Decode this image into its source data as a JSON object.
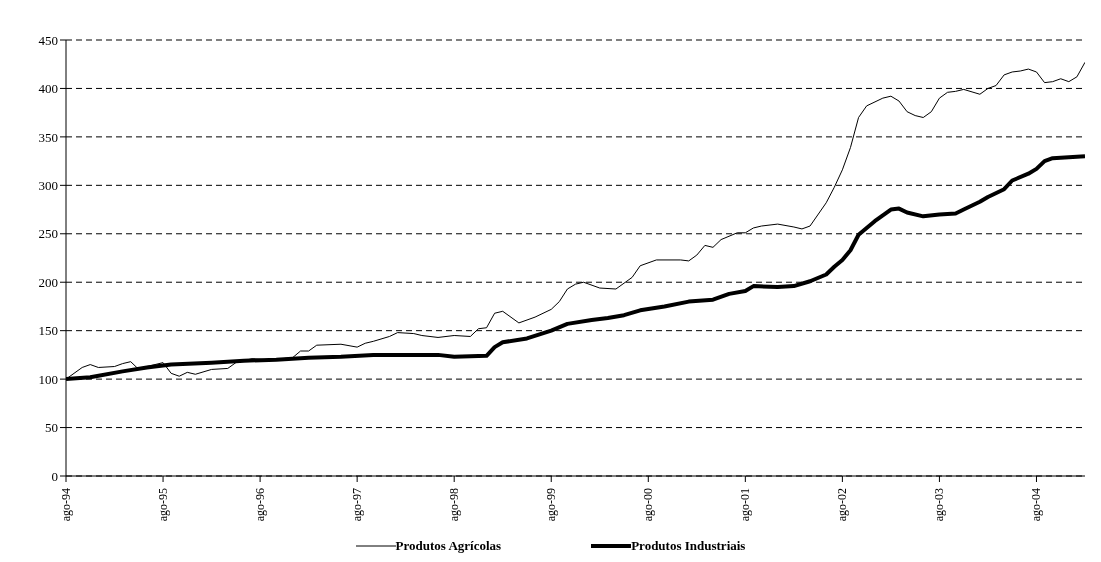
{
  "chart_data": {
    "type": "line",
    "xlim": [
      "1994-08",
      "2005-02"
    ],
    "xticks": [
      {
        "value": "1994-08",
        "label": "ago-94"
      },
      {
        "value": "1995-08",
        "label": "ago-95"
      },
      {
        "value": "1996-08",
        "label": "ago-96"
      },
      {
        "value": "1997-08",
        "label": "ago-97"
      },
      {
        "value": "1998-08",
        "label": "ago-98"
      },
      {
        "value": "1999-08",
        "label": "ago-99"
      },
      {
        "value": "2000-08",
        "label": "ago-00"
      },
      {
        "value": "2001-08",
        "label": "ago-01"
      },
      {
        "value": "2002-08",
        "label": "ago-02"
      },
      {
        "value": "2003-08",
        "label": "ago-03"
      },
      {
        "value": "2004-08",
        "label": "ago-04"
      }
    ],
    "ylim": [
      0,
      450
    ],
    "yticks": [
      0,
      50,
      100,
      150,
      200,
      250,
      300,
      350,
      400,
      450
    ],
    "grid": "y",
    "legend": "bottom",
    "marker": "none",
    "line_style": "solid",
    "series": [
      {
        "name": "Produtos Agrícolas",
        "color": "#000000",
        "x": [
          "1994-08",
          "1994-10",
          "1994-11",
          "1994-12",
          "1995-02",
          "1995-03",
          "1995-04",
          "1995-05",
          "1995-06",
          "1995-08",
          "1995-09",
          "1995-10",
          "1995-11",
          "1995-12",
          "1996-02",
          "1996-04",
          "1996-05",
          "1996-07",
          "1996-09",
          "1996-12",
          "1997-01",
          "1997-02",
          "1997-03",
          "1997-06",
          "1997-08",
          "1997-09",
          "1997-10",
          "1997-12",
          "1998-01",
          "1998-03",
          "1998-04",
          "1998-06",
          "1998-08",
          "1998-10",
          "1998-11",
          "1998-12",
          "1999-01",
          "1999-02",
          "1999-04",
          "1999-06",
          "1999-08",
          "1999-09",
          "1999-10",
          "1999-11",
          "1999-12",
          "2000-02",
          "2000-04",
          "2000-06",
          "2000-07",
          "2000-09",
          "2000-12",
          "2001-01",
          "2001-02",
          "2001-03",
          "2001-04",
          "2001-05",
          "2001-07",
          "2001-08",
          "2001-09",
          "2001-10",
          "2001-12",
          "2002-02",
          "2002-03",
          "2002-04",
          "2002-06",
          "2002-07",
          "2002-08",
          "2002-09",
          "2002-10",
          "2002-11",
          "2003-01",
          "2003-02",
          "2003-03",
          "2003-04",
          "2003-05",
          "2003-06",
          "2003-07",
          "2003-08",
          "2003-09",
          "2003-10",
          "2003-11",
          "2004-01",
          "2004-02",
          "2004-03",
          "2004-04",
          "2004-05",
          "2004-06",
          "2004-07",
          "2004-08",
          "2004-09",
          "2004-10",
          "2004-11",
          "2004-12",
          "2005-01",
          "2005-02"
        ],
        "values": [
          100,
          112,
          115,
          112,
          113,
          116,
          118,
          110,
          113,
          117,
          106,
          103,
          107,
          105,
          110,
          111,
          117,
          121,
          120,
          122,
          129,
          129,
          135,
          136,
          133,
          137,
          139,
          144,
          148,
          147,
          145,
          143,
          145,
          144,
          152,
          153,
          168,
          170,
          158,
          164,
          172,
          180,
          193,
          198,
          200,
          194,
          193,
          205,
          217,
          223,
          223,
          222,
          228,
          238,
          236,
          244,
          251,
          251,
          256,
          258,
          260,
          257,
          255,
          258,
          282,
          298,
          316,
          339,
          370,
          382,
          390,
          392,
          387,
          376,
          372,
          370,
          376,
          390,
          396,
          397,
          399,
          394,
          400,
          403,
          414,
          417,
          418,
          420,
          417,
          406,
          407,
          410,
          407,
          412,
          427
        ]
      },
      {
        "name": "Produtos Industriais",
        "color": "#000000",
        "x": [
          "1994-08",
          "1994-11",
          "1995-03",
          "1995-06",
          "1995-09",
          "1996-02",
          "1996-06",
          "1996-10",
          "1997-02",
          "1997-06",
          "1997-10",
          "1998-01",
          "1998-04",
          "1998-06",
          "1998-08",
          "1998-12",
          "1999-01",
          "1999-02",
          "1999-05",
          "1999-08",
          "1999-10",
          "2000-01",
          "2000-03",
          "2000-05",
          "2000-07",
          "2000-10",
          "2001-01",
          "2001-04",
          "2001-06",
          "2001-08",
          "2001-09",
          "2001-12",
          "2002-02",
          "2002-04",
          "2002-06",
          "2002-07",
          "2002-08",
          "2002-09",
          "2002-10",
          "2002-12",
          "2003-02",
          "2003-03",
          "2003-04",
          "2003-06",
          "2003-08",
          "2003-10",
          "2003-11",
          "2004-01",
          "2004-02",
          "2004-04",
          "2004-05",
          "2004-07",
          "2004-08",
          "2004-09",
          "2004-10",
          "2004-12",
          "2005-02"
        ],
        "values": [
          100,
          102,
          108,
          112,
          115,
          117,
          119,
          120,
          122,
          123,
          125,
          125,
          125,
          125,
          123,
          124,
          133,
          138,
          142,
          150,
          157,
          161,
          163,
          166,
          171,
          175,
          180,
          182,
          188,
          191,
          196,
          195,
          196,
          201,
          208,
          216,
          223,
          233,
          249,
          263,
          275,
          276,
          272,
          268,
          270,
          271,
          275,
          283,
          288,
          296,
          305,
          312,
          317,
          325,
          328,
          329,
          330
        ]
      }
    ]
  }
}
